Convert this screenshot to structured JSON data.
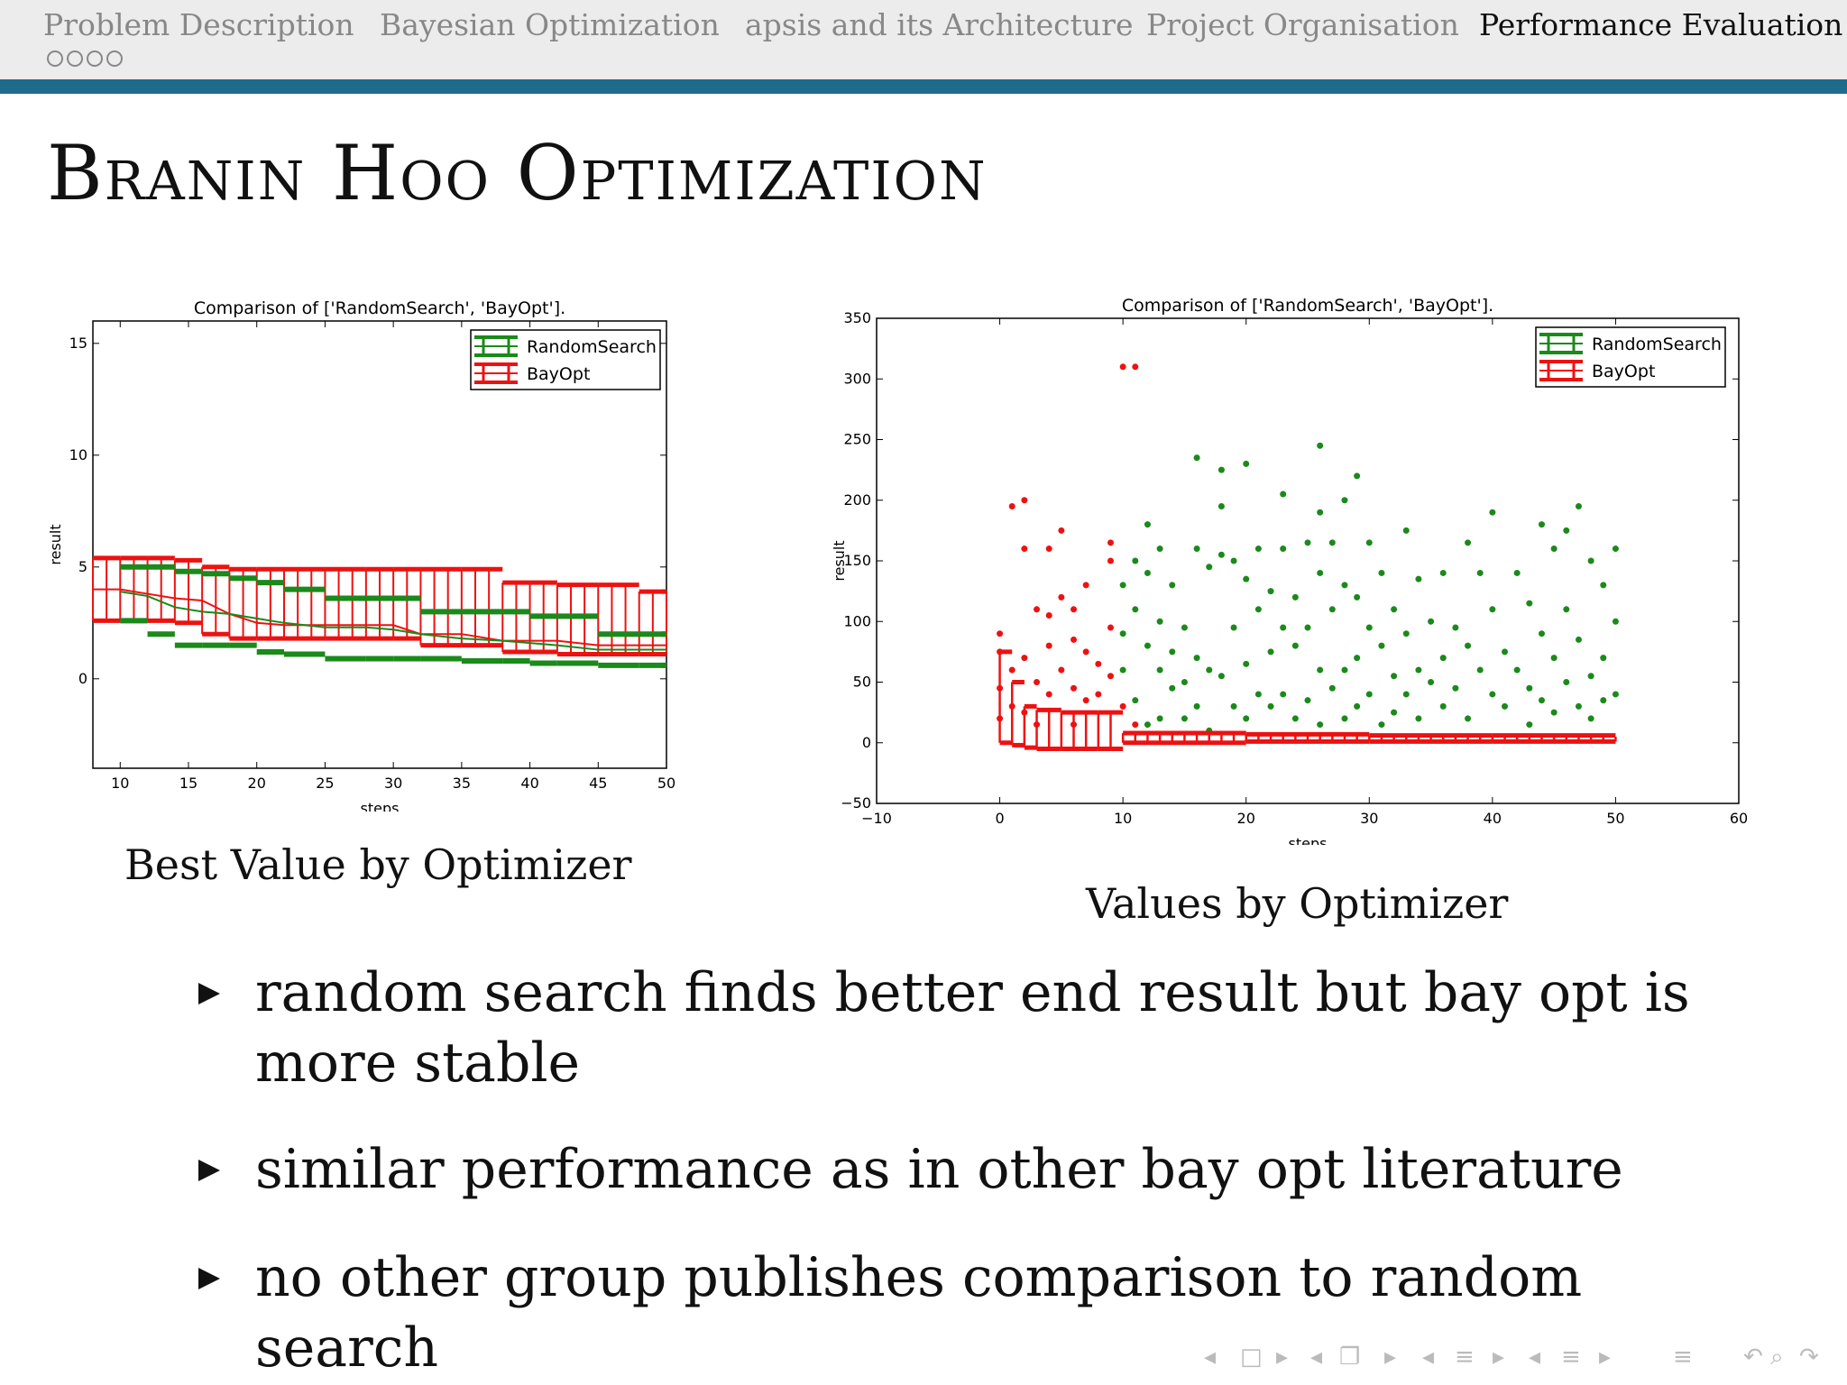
{
  "nav": {
    "tabs": [
      {
        "label": "Problem Description"
      },
      {
        "label": "Bayesian Optimization"
      },
      {
        "label": "apsis and its Architecture"
      },
      {
        "label": "Project Organisation"
      },
      {
        "label": "Performance Evaluation"
      }
    ],
    "active_tab": 4,
    "dots_count": 4
  },
  "slide": {
    "title": "Branin Hoo Optimization"
  },
  "chart_data": [
    {
      "type": "line",
      "title": "Comparison of ['RandomSearch', 'BayOpt'].",
      "xlabel": "steps",
      "ylabel": "result",
      "xlim": [
        8,
        50
      ],
      "ylim": [
        -4,
        16
      ],
      "xticks": [
        10,
        15,
        20,
        25,
        30,
        35,
        40,
        45,
        50
      ],
      "yticks": [
        0,
        5,
        10,
        15
      ],
      "legend": {
        "placement": "top-right",
        "entries": [
          "RandomSearch",
          "BayOpt"
        ]
      },
      "colors": {
        "RandomSearch": "#1a8a1a",
        "BayOpt": "#ee1111"
      },
      "series": [
        {
          "name": "RandomSearch",
          "x": [
            10,
            12,
            14,
            16,
            18,
            20,
            22,
            25,
            28,
            30,
            32,
            35,
            38,
            40,
            42,
            45,
            48,
            50
          ],
          "mean": [
            3.9,
            3.7,
            3.2,
            3.0,
            2.9,
            2.7,
            2.5,
            2.3,
            2.3,
            2.2,
            2.0,
            1.8,
            1.7,
            1.6,
            1.5,
            1.3,
            1.3,
            1.3
          ],
          "upper": [
            5.0,
            5.0,
            4.8,
            4.7,
            4.5,
            4.3,
            4.0,
            3.6,
            3.6,
            3.6,
            3.0,
            3.0,
            3.0,
            2.8,
            2.8,
            2.0,
            2.0,
            2.0
          ],
          "lower": [
            2.6,
            2.0,
            1.5,
            1.5,
            1.5,
            1.2,
            1.1,
            0.9,
            0.9,
            0.9,
            0.9,
            0.8,
            0.8,
            0.7,
            0.7,
            0.6,
            0.6,
            0.6
          ]
        },
        {
          "name": "BayOpt",
          "x": [
            8,
            10,
            12,
            14,
            16,
            18,
            20,
            22,
            25,
            28,
            30,
            32,
            35,
            38,
            40,
            42,
            45,
            48,
            50
          ],
          "mean": [
            4.0,
            4.0,
            3.8,
            3.6,
            3.5,
            2.9,
            2.5,
            2.4,
            2.4,
            2.4,
            2.4,
            2.0,
            2.0,
            1.7,
            1.7,
            1.7,
            1.5,
            1.5,
            1.5
          ],
          "upper": [
            5.4,
            5.4,
            5.4,
            5.3,
            5.0,
            4.9,
            4.9,
            4.9,
            4.9,
            4.9,
            4.9,
            4.9,
            4.9,
            4.3,
            4.3,
            4.2,
            4.2,
            3.9,
            3.9
          ],
          "lower": [
            2.6,
            2.6,
            2.6,
            2.5,
            2.0,
            1.8,
            1.8,
            1.8,
            1.8,
            1.8,
            1.8,
            1.5,
            1.5,
            1.2,
            1.2,
            1.1,
            1.1,
            1.1,
            1.1
          ]
        }
      ]
    },
    {
      "type": "scatter",
      "title": "Comparison of ['RandomSearch', 'BayOpt'].",
      "xlabel": "steps",
      "ylabel": "result",
      "xlim": [
        -10,
        60
      ],
      "ylim": [
        -50,
        350
      ],
      "xticks": [
        -10,
        0,
        10,
        20,
        30,
        40,
        50,
        60
      ],
      "yticks": [
        -50,
        0,
        50,
        100,
        150,
        200,
        250,
        300,
        350
      ],
      "legend": {
        "placement": "top-right",
        "entries": [
          "RandomSearch",
          "BayOpt"
        ]
      },
      "colors": {
        "RandomSearch": "#1a8a1a",
        "BayOpt": "#ee1111"
      },
      "series": [
        {
          "name": "RandomSearch",
          "points": [
            [
              10,
              130
            ],
            [
              10,
              90
            ],
            [
              10,
              60
            ],
            [
              11,
              150
            ],
            [
              11,
              110
            ],
            [
              11,
              35
            ],
            [
              12,
              180
            ],
            [
              12,
              140
            ],
            [
              12,
              80
            ],
            [
              12,
              15
            ],
            [
              13,
              160
            ],
            [
              13,
              100
            ],
            [
              13,
              60
            ],
            [
              13,
              20
            ],
            [
              14,
              130
            ],
            [
              14,
              75
            ],
            [
              14,
              45
            ],
            [
              15,
              95
            ],
            [
              15,
              50
            ],
            [
              15,
              20
            ],
            [
              16,
              235
            ],
            [
              16,
              160
            ],
            [
              16,
              70
            ],
            [
              16,
              30
            ],
            [
              17,
              145
            ],
            [
              17,
              60
            ],
            [
              17,
              10
            ],
            [
              18,
              225
            ],
            [
              18,
              195
            ],
            [
              18,
              155
            ],
            [
              18,
              55
            ],
            [
              19,
              150
            ],
            [
              19,
              95
            ],
            [
              19,
              30
            ],
            [
              20,
              230
            ],
            [
              20,
              135
            ],
            [
              20,
              65
            ],
            [
              20,
              20
            ],
            [
              21,
              160
            ],
            [
              21,
              110
            ],
            [
              21,
              40
            ],
            [
              22,
              125
            ],
            [
              22,
              75
            ],
            [
              22,
              30
            ],
            [
              23,
              205
            ],
            [
              23,
              160
            ],
            [
              23,
              95
            ],
            [
              23,
              40
            ],
            [
              24,
              120
            ],
            [
              24,
              80
            ],
            [
              24,
              20
            ],
            [
              25,
              165
            ],
            [
              25,
              95
            ],
            [
              25,
              35
            ],
            [
              26,
              245
            ],
            [
              26,
              190
            ],
            [
              26,
              140
            ],
            [
              26,
              60
            ],
            [
              26,
              15
            ],
            [
              27,
              165
            ],
            [
              27,
              110
            ],
            [
              27,
              45
            ],
            [
              28,
              200
            ],
            [
              28,
              130
            ],
            [
              28,
              60
            ],
            [
              28,
              20
            ],
            [
              29,
              220
            ],
            [
              29,
              120
            ],
            [
              29,
              70
            ],
            [
              29,
              30
            ],
            [
              30,
              165
            ],
            [
              30,
              95
            ],
            [
              30,
              40
            ],
            [
              31,
              140
            ],
            [
              31,
              80
            ],
            [
              31,
              15
            ],
            [
              32,
              110
            ],
            [
              32,
              55
            ],
            [
              32,
              25
            ],
            [
              33,
              175
            ],
            [
              33,
              90
            ],
            [
              33,
              40
            ],
            [
              34,
              135
            ],
            [
              34,
              60
            ],
            [
              34,
              20
            ],
            [
              35,
              100
            ],
            [
              35,
              50
            ],
            [
              36,
              140
            ],
            [
              36,
              70
            ],
            [
              36,
              30
            ],
            [
              37,
              95
            ],
            [
              37,
              45
            ],
            [
              38,
              165
            ],
            [
              38,
              80
            ],
            [
              38,
              20
            ],
            [
              39,
              140
            ],
            [
              39,
              60
            ],
            [
              40,
              190
            ],
            [
              40,
              110
            ],
            [
              40,
              40
            ],
            [
              41,
              75
            ],
            [
              41,
              30
            ],
            [
              42,
              140
            ],
            [
              42,
              60
            ],
            [
              43,
              115
            ],
            [
              43,
              45
            ],
            [
              43,
              15
            ],
            [
              44,
              180
            ],
            [
              44,
              90
            ],
            [
              44,
              35
            ],
            [
              45,
              160
            ],
            [
              45,
              70
            ],
            [
              45,
              25
            ],
            [
              46,
              175
            ],
            [
              46,
              110
            ],
            [
              46,
              50
            ],
            [
              47,
              195
            ],
            [
              47,
              85
            ],
            [
              47,
              30
            ],
            [
              48,
              150
            ],
            [
              48,
              55
            ],
            [
              48,
              20
            ],
            [
              49,
              130
            ],
            [
              49,
              70
            ],
            [
              49,
              35
            ],
            [
              50,
              160
            ],
            [
              50,
              100
            ],
            [
              50,
              40
            ]
          ]
        },
        {
          "name": "BayOpt",
          "points": [
            [
              0,
              90
            ],
            [
              0,
              75
            ],
            [
              0,
              45
            ],
            [
              0,
              20
            ],
            [
              1,
              195
            ],
            [
              1,
              60
            ],
            [
              1,
              30
            ],
            [
              2,
              200
            ],
            [
              2,
              160
            ],
            [
              2,
              70
            ],
            [
              2,
              25
            ],
            [
              3,
              110
            ],
            [
              3,
              50
            ],
            [
              3,
              15
            ],
            [
              4,
              160
            ],
            [
              4,
              105
            ],
            [
              4,
              80
            ],
            [
              4,
              40
            ],
            [
              5,
              175
            ],
            [
              5,
              120
            ],
            [
              5,
              60
            ],
            [
              6,
              110
            ],
            [
              6,
              85
            ],
            [
              6,
              45
            ],
            [
              6,
              15
            ],
            [
              7,
              130
            ],
            [
              7,
              75
            ],
            [
              7,
              35
            ],
            [
              8,
              65
            ],
            [
              8,
              40
            ],
            [
              9,
              165
            ],
            [
              9,
              150
            ],
            [
              9,
              95
            ],
            [
              9,
              55
            ],
            [
              10,
              310
            ],
            [
              10,
              30
            ],
            [
              11,
              310
            ],
            [
              11,
              15
            ]
          ]
        }
      ],
      "bay_opt_best_band": {
        "x": [
          0,
          1,
          2,
          3,
          5,
          8,
          10,
          20,
          30,
          40,
          50
        ],
        "upper": [
          75,
          50,
          30,
          27,
          25,
          25,
          8,
          7,
          6,
          6,
          5
        ],
        "lower": [
          0,
          -2,
          -4,
          -5,
          -5,
          -5,
          0,
          1,
          1,
          1,
          1
        ]
      }
    }
  ],
  "captions": {
    "left": "Best Value by Optimizer",
    "right": "Values by Optimizer"
  },
  "bullets": [
    "random search finds better end result but bay opt is more stable",
    "similar performance as in other bay opt literature",
    "no other group publishes comparison to random search"
  ],
  "controls": [
    {
      "icon": "triangle-left-icon",
      "glyph": "◂"
    },
    {
      "icon": "frame-icon",
      "glyph": "□"
    },
    {
      "icon": "triangle-right-icon",
      "glyph": "▸"
    },
    {
      "icon": "triangle-left-icon",
      "glyph": "◂"
    },
    {
      "icon": "subsection-icon",
      "glyph": "❐"
    },
    {
      "icon": "triangle-right-icon",
      "glyph": "▸"
    },
    {
      "icon": "triangle-left-icon",
      "glyph": "◂"
    },
    {
      "icon": "section-icon",
      "glyph": "≡"
    },
    {
      "icon": "triangle-right-icon",
      "glyph": "▸"
    },
    {
      "icon": "triangle-left-icon",
      "glyph": "◂"
    },
    {
      "icon": "document-icon",
      "glyph": "≡"
    },
    {
      "icon": "triangle-right-icon",
      "glyph": "▸"
    },
    {
      "icon": "toc-icon",
      "glyph": "≡"
    },
    {
      "icon": "back-icon",
      "glyph": "↶"
    },
    {
      "icon": "search-icon",
      "glyph": "⌕"
    },
    {
      "icon": "forward-icon",
      "glyph": "↷"
    }
  ]
}
